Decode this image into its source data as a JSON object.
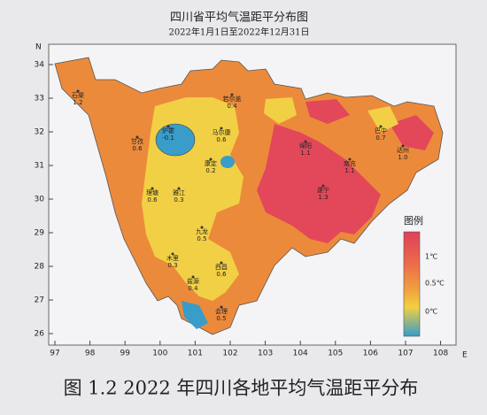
{
  "header": {
    "title": "四川省平均气温距平分布图",
    "subtitle": "2022年1月1日至2022年12月31日"
  },
  "axes": {
    "lon_ticks": [
      97,
      98,
      99,
      100,
      101,
      102,
      103,
      104,
      105,
      106,
      107,
      108
    ],
    "lat_ticks": [
      26,
      27,
      28,
      29,
      30,
      31,
      32,
      33,
      34
    ],
    "north": "N",
    "east": "E"
  },
  "legend": {
    "title": "图例",
    "labels": [
      "1℃",
      "0.5℃",
      "0℃"
    ]
  },
  "stations": [
    {
      "name": "石渠",
      "value": "1.2"
    },
    {
      "name": "甘孜",
      "value": "0.6"
    },
    {
      "name": "炉霍",
      "value": "-0.1"
    },
    {
      "name": "马尔康",
      "value": "0.6"
    },
    {
      "name": "若尔盖",
      "value": "0.4"
    },
    {
      "name": "康定",
      "value": "0.2"
    },
    {
      "name": "理塘",
      "value": "0.6"
    },
    {
      "name": "雅江",
      "value": "0.3"
    },
    {
      "name": "九龙",
      "value": "0.5"
    },
    {
      "name": "木里",
      "value": "0.3"
    },
    {
      "name": "西昌",
      "value": "0.6"
    },
    {
      "name": "盐源",
      "value": "0.4"
    },
    {
      "name": "会理",
      "value": "0.5"
    },
    {
      "name": "巴中",
      "value": "0.7"
    },
    {
      "name": "绵阳",
      "value": "1.1"
    },
    {
      "name": "遂宁",
      "value": "1.3"
    },
    {
      "name": "南充",
      "value": "1.1"
    },
    {
      "name": "达州",
      "value": "1.0"
    }
  ],
  "caption": "图 1.2 2022 年四川各地平均气温距平分布"
}
